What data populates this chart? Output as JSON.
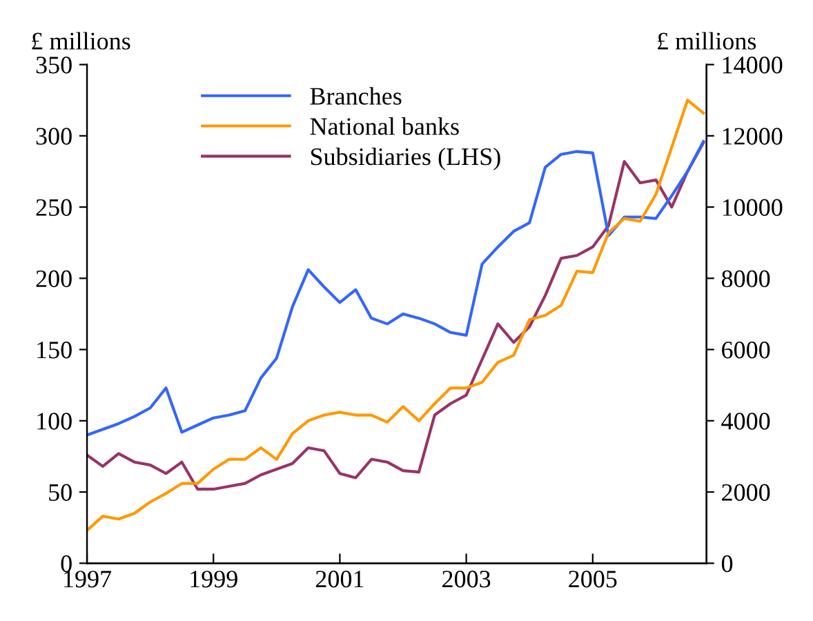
{
  "chart_data": {
    "type": "line",
    "ylabel": "£ millions",
    "y2label": "£ millions",
    "x": [
      1997.0,
      1997.25,
      1997.5,
      1997.75,
      1998.0,
      1998.25,
      1998.5,
      1998.75,
      1999.0,
      1999.25,
      1999.5,
      1999.75,
      2000.0,
      2000.25,
      2000.5,
      2000.75,
      2001.0,
      2001.25,
      2001.5,
      2001.75,
      2002.0,
      2002.25,
      2002.5,
      2002.75,
      2003.0,
      2003.25,
      2003.5,
      2003.75,
      2004.0,
      2004.25,
      2004.5,
      2004.75,
      2005.0,
      2005.25,
      2005.5,
      2005.75,
      2006.0,
      2006.25,
      2006.5,
      2006.75
    ],
    "series": [
      {
        "name": "Branches",
        "color": "#3366ff",
        "axis": "y2",
        "values": [
          3600,
          3760,
          3920,
          4120,
          4360,
          4920,
          3680,
          3880,
          4080,
          4160,
          4280,
          5200,
          5760,
          7200,
          8240,
          7760,
          7320,
          7680,
          6880,
          6720,
          7000,
          6880,
          6720,
          6480,
          6400,
          8400,
          8880,
          9320,
          9560,
          11120,
          11480,
          11560,
          11520,
          9200,
          9720,
          9720,
          9680,
          10320,
          11000,
          11840
        ]
      },
      {
        "name": "National banks",
        "color": "#ff9900",
        "axis": "y2",
        "values": [
          920,
          1320,
          1240,
          1400,
          1720,
          1960,
          2240,
          2240,
          2640,
          2920,
          2920,
          3240,
          2920,
          3640,
          4000,
          4160,
          4240,
          4160,
          4160,
          3960,
          4400,
          4000,
          4480,
          4920,
          4920,
          5080,
          5640,
          5840,
          6840,
          6960,
          7240,
          8200,
          8160,
          9280,
          9680,
          9600,
          10360,
          11680,
          13000,
          12640
        ]
      },
      {
        "name": "Subsidiaries (LHS)",
        "color": "#993366",
        "axis": "y",
        "values": [
          76,
          68,
          77,
          71,
          69,
          63,
          71,
          52,
          52,
          54,
          56,
          62,
          66,
          70,
          81,
          79,
          63,
          60,
          73,
          71,
          65,
          64,
          104,
          112,
          118,
          143,
          168,
          155,
          166,
          188,
          214,
          216,
          222,
          237,
          282,
          267,
          269,
          250,
          275,
          295
        ]
      }
    ],
    "xlim": [
      1997,
      2006.8
    ],
    "xticks": [
      1997,
      1999,
      2001,
      2003,
      2005
    ],
    "ylim": [
      0,
      350
    ],
    "yticks": [
      0,
      50,
      100,
      150,
      200,
      250,
      300,
      350
    ],
    "y2lim": [
      0,
      14000
    ],
    "y2ticks": [
      0,
      2000,
      4000,
      6000,
      8000,
      10000,
      12000,
      14000
    ],
    "legend": "top left",
    "grid": false
  }
}
